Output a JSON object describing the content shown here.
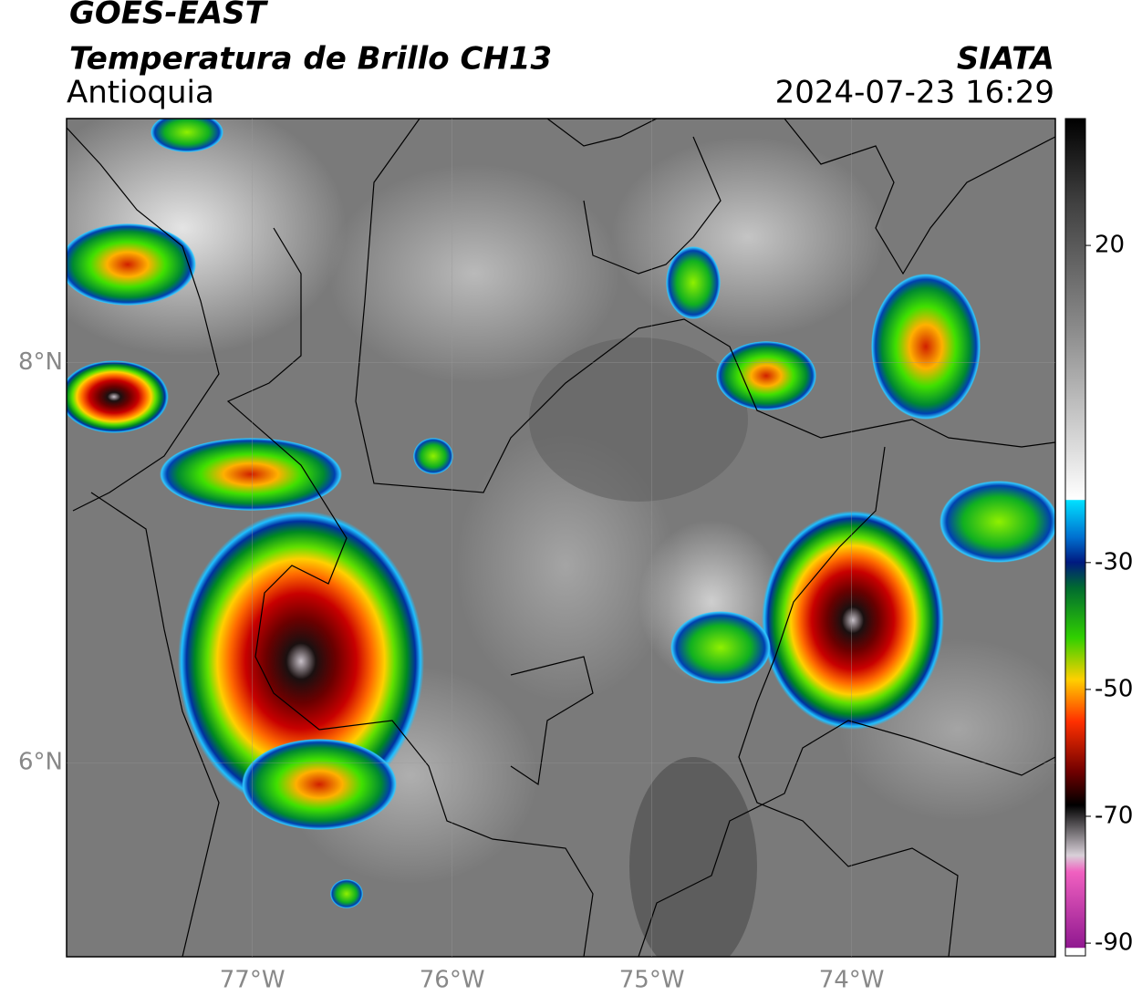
{
  "header": {
    "title": "GOES-EAST",
    "subtitle": "Temperatura de Brillo CH13",
    "region": "Antioquia",
    "source": "SIATA",
    "timestamp": "2024-07-23 16:29"
  },
  "map": {
    "lonlim": [
      -77.93,
      -72.98
    ],
    "latlim": [
      5.03,
      9.22
    ],
    "lonticks": [
      {
        "value": -77,
        "label": "77°W"
      },
      {
        "value": -76,
        "label": "76°W"
      },
      {
        "value": -75,
        "label": "75°W"
      },
      {
        "value": -74,
        "label": "74°W"
      }
    ],
    "latticks": [
      {
        "value": 8,
        "label": "8°N"
      },
      {
        "value": 6,
        "label": "6°N"
      }
    ]
  },
  "colorbar": {
    "lim": [
      -92,
      40
    ],
    "ticks": [
      20,
      -30,
      -50,
      -70,
      -90
    ]
  }
}
